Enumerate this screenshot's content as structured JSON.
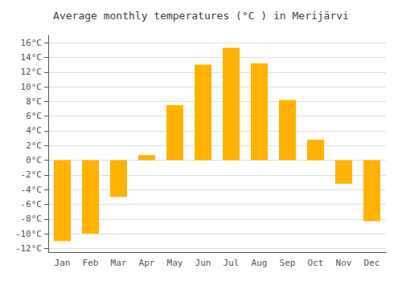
{
  "chart_data": {
    "type": "bar",
    "title": "Average monthly temperatures (°C ) in Merijärvi",
    "categories": [
      "Jan",
      "Feb",
      "Mar",
      "Apr",
      "May",
      "Jun",
      "Jul",
      "Aug",
      "Sep",
      "Oct",
      "Nov",
      "Dec"
    ],
    "values": [
      -11,
      -10,
      -5,
      0.7,
      7.5,
      13,
      15.3,
      13.2,
      8.2,
      2.8,
      -3.2,
      -8.3
    ],
    "color": "#FFB300",
    "ylim": [
      -12.5,
      17
    ],
    "yticks": [
      {
        "value": -12,
        "label": "-12°C"
      },
      {
        "value": -10,
        "label": "-10°C"
      },
      {
        "value": -8,
        "label": "-8°C"
      },
      {
        "value": -6,
        "label": "-6°C"
      },
      {
        "value": -4,
        "label": "-4°C"
      },
      {
        "value": -2,
        "label": "-2°C"
      },
      {
        "value": 0,
        "label": "0°C"
      },
      {
        "value": 2,
        "label": "2°C"
      },
      {
        "value": 4,
        "label": "4°C"
      },
      {
        "value": 6,
        "label": "6°C"
      },
      {
        "value": 8,
        "label": "8°C"
      },
      {
        "value": 10,
        "label": "10°C"
      },
      {
        "value": 12,
        "label": "12°C"
      },
      {
        "value": 14,
        "label": "14°C"
      },
      {
        "value": 16,
        "label": "16°C"
      }
    ],
    "grid": true
  }
}
